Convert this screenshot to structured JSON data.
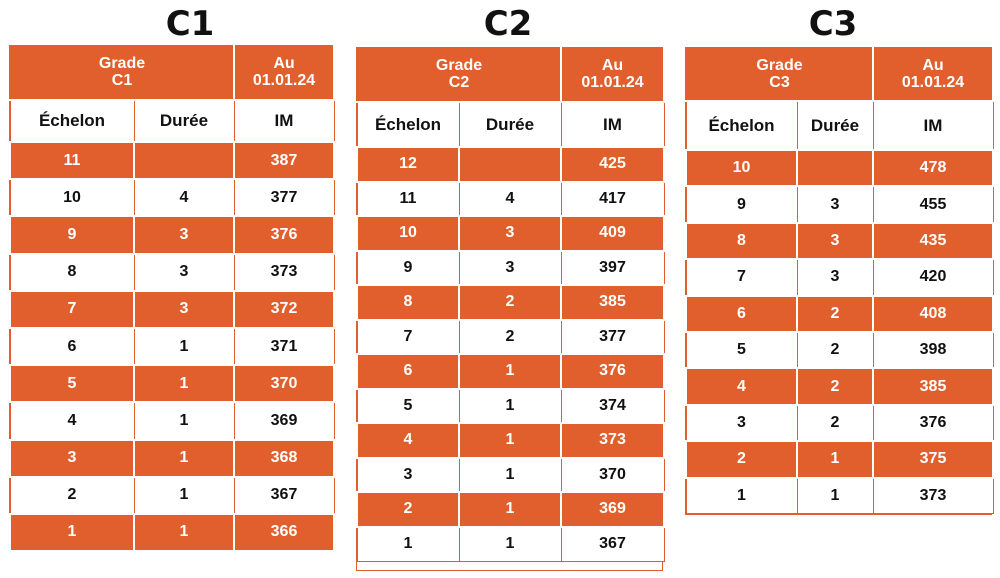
{
  "tables": [
    {
      "title": "C1",
      "grade_label": "Grade",
      "grade_value": "C1",
      "date_label": "Au",
      "date_value": "01.01.24",
      "col_echelon": "Échelon",
      "col_duree": "Durée",
      "col_im": "IM",
      "rows": [
        {
          "echelon": "11",
          "duree": "",
          "im": "387"
        },
        {
          "echelon": "10",
          "duree": "4",
          "im": "377"
        },
        {
          "echelon": "9",
          "duree": "3",
          "im": "376"
        },
        {
          "echelon": "8",
          "duree": "3",
          "im": "373"
        },
        {
          "echelon": "7",
          "duree": "3",
          "im": "372"
        },
        {
          "echelon": "6",
          "duree": "1",
          "im": "371"
        },
        {
          "echelon": "5",
          "duree": "1",
          "im": "370"
        },
        {
          "echelon": "4",
          "duree": "1",
          "im": "369"
        },
        {
          "echelon": "3",
          "duree": "1",
          "im": "368"
        },
        {
          "echelon": "2",
          "duree": "1",
          "im": "367"
        },
        {
          "echelon": "1",
          "duree": "1",
          "im": "366"
        }
      ]
    },
    {
      "title": "C2",
      "grade_label": "Grade",
      "grade_value": "C2",
      "date_label": "Au",
      "date_value": "01.01.24",
      "col_echelon": "Échelon",
      "col_duree": "Durée",
      "col_im": "IM",
      "rows": [
        {
          "echelon": "12",
          "duree": "",
          "im": "425"
        },
        {
          "echelon": "11",
          "duree": "4",
          "im": "417"
        },
        {
          "echelon": "10",
          "duree": "3",
          "im": "409"
        },
        {
          "echelon": "9",
          "duree": "3",
          "im": "397"
        },
        {
          "echelon": "8",
          "duree": "2",
          "im": "385"
        },
        {
          "echelon": "7",
          "duree": "2",
          "im": "377"
        },
        {
          "echelon": "6",
          "duree": "1",
          "im": "376"
        },
        {
          "echelon": "5",
          "duree": "1",
          "im": "374"
        },
        {
          "echelon": "4",
          "duree": "1",
          "im": "373"
        },
        {
          "echelon": "3",
          "duree": "1",
          "im": "370"
        },
        {
          "echelon": "2",
          "duree": "1",
          "im": "369"
        },
        {
          "echelon": "1",
          "duree": "1",
          "im": "367"
        }
      ]
    },
    {
      "title": "C3",
      "grade_label": "Grade",
      "grade_value": "C3",
      "date_label": "Au",
      "date_value": "01.01.24",
      "col_echelon": "Échelon",
      "col_duree": "Durée",
      "col_im": "IM",
      "rows": [
        {
          "echelon": "10",
          "duree": "",
          "im": "478"
        },
        {
          "echelon": "9",
          "duree": "3",
          "im": "455"
        },
        {
          "echelon": "8",
          "duree": "3",
          "im": "435"
        },
        {
          "echelon": "7",
          "duree": "3",
          "im": "420"
        },
        {
          "echelon": "6",
          "duree": "2",
          "im": "408"
        },
        {
          "echelon": "5",
          "duree": "2",
          "im": "398"
        },
        {
          "echelon": "4",
          "duree": "2",
          "im": "385"
        },
        {
          "echelon": "3",
          "duree": "2",
          "im": "376"
        },
        {
          "echelon": "2",
          "duree": "1",
          "im": "375"
        },
        {
          "echelon": "1",
          "duree": "1",
          "im": "373"
        }
      ]
    }
  ],
  "colors": {
    "accent": "#e05f2c",
    "text": "#111111",
    "background": "#ffffff"
  }
}
